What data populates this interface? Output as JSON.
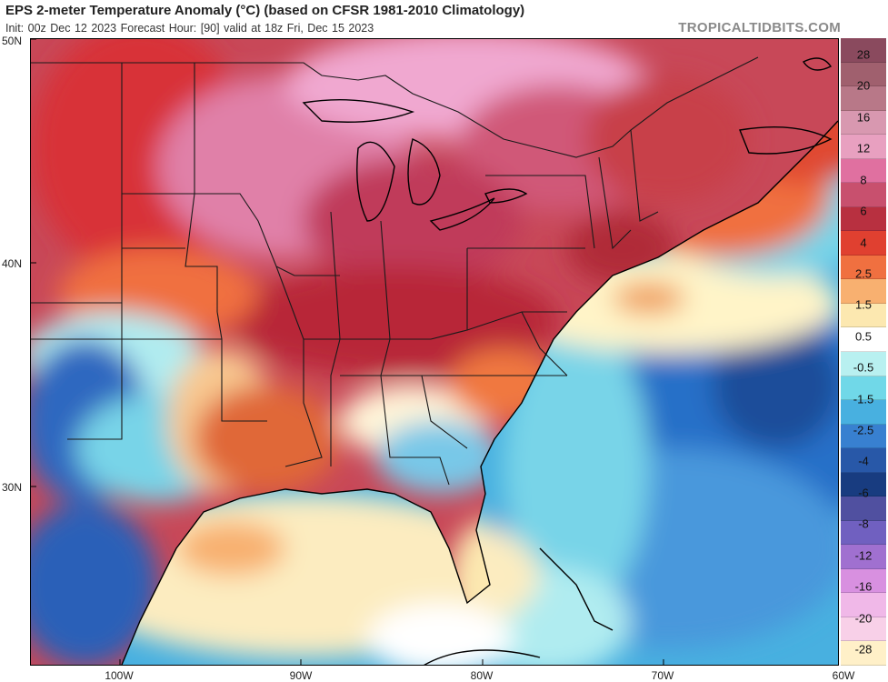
{
  "header": {
    "title": "EPS 2-meter Temperature Anomaly (°C) (based on CFSR 1981-2010 Climatology)",
    "subtitle": "Init: 00z Dec 12 2023   Forecast Hour: [90]   valid at 18z Fri, Dec 15 2023",
    "brand": "TROPICALTIDBITS.COM"
  },
  "axes": {
    "lat_labels": [
      "50N",
      "40N",
      "30N"
    ],
    "lon_labels": [
      "100W",
      "90W",
      "80W",
      "70W",
      "60W"
    ]
  },
  "colorbar": {
    "labels": [
      "28",
      "20",
      "16",
      "12",
      "8",
      "6",
      "4",
      "2.5",
      "1.5",
      "0.5",
      "-0.5",
      "-1.5",
      "-2.5",
      "-4",
      "-6",
      "-8",
      "-12",
      "-16",
      "-20",
      "-28"
    ],
    "colors": [
      "#8a4a5e",
      "#a0606e",
      "#b87888",
      "#d898b0",
      "#e8a0c0",
      "#e070a0",
      "#c8506e",
      "#b83040",
      "#e04030",
      "#f07040",
      "#f8b070",
      "#fce8b0",
      "#ffffff",
      "#b8f0f0",
      "#70d8e8",
      "#48b0e0",
      "#3880d0",
      "#2858a8",
      "#183c80",
      "#5050a0",
      "#7060c0",
      "#a070d0",
      "#d890e0",
      "#f0b8e8",
      "#f8d0e8",
      "#fff0c8"
    ]
  },
  "map": {
    "ocean_color": "#48b0e0",
    "land_warm_color": "#b83a50"
  }
}
